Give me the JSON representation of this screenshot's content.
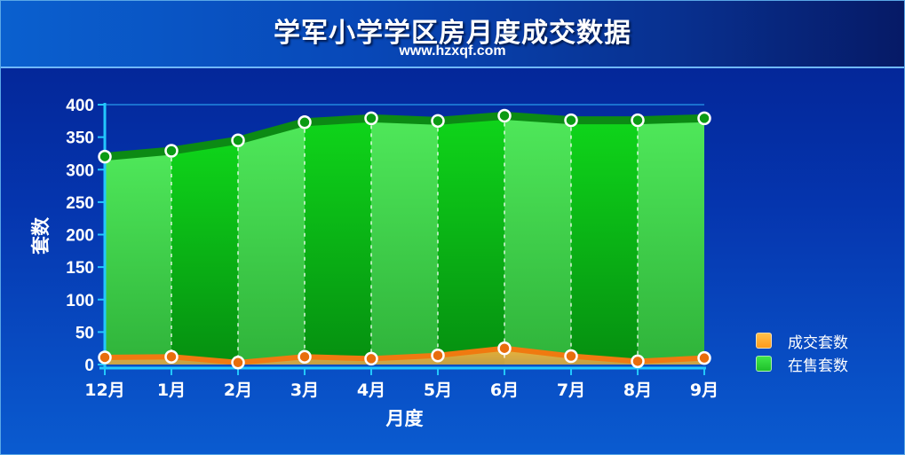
{
  "header": {
    "title": "学军小学学区房月度成交数据",
    "subtitle": "www.hzxqf.com"
  },
  "colors": {
    "sale_series": "#ff9a1a",
    "stock_series": "#1fbf2a"
  },
  "chart_data": {
    "type": "area",
    "categories": [
      "12月",
      "1月",
      "2月",
      "3月",
      "4月",
      "5月",
      "6月",
      "7月",
      "8月",
      "9月"
    ],
    "series": [
      {
        "name": "成交套数",
        "values": [
          11,
          12,
          3,
          12,
          9,
          14,
          25,
          13,
          5,
          10
        ]
      },
      {
        "name": "在售套数",
        "values": [
          320,
          329,
          345,
          373,
          379,
          375,
          383,
          376,
          376,
          379
        ]
      }
    ],
    "xlabel": "月度",
    "ylabel": "套数",
    "ylim": [
      0,
      400
    ],
    "yticks": [
      0,
      50,
      100,
      150,
      200,
      250,
      300,
      350,
      400
    ],
    "legend": "right",
    "grid": false
  }
}
